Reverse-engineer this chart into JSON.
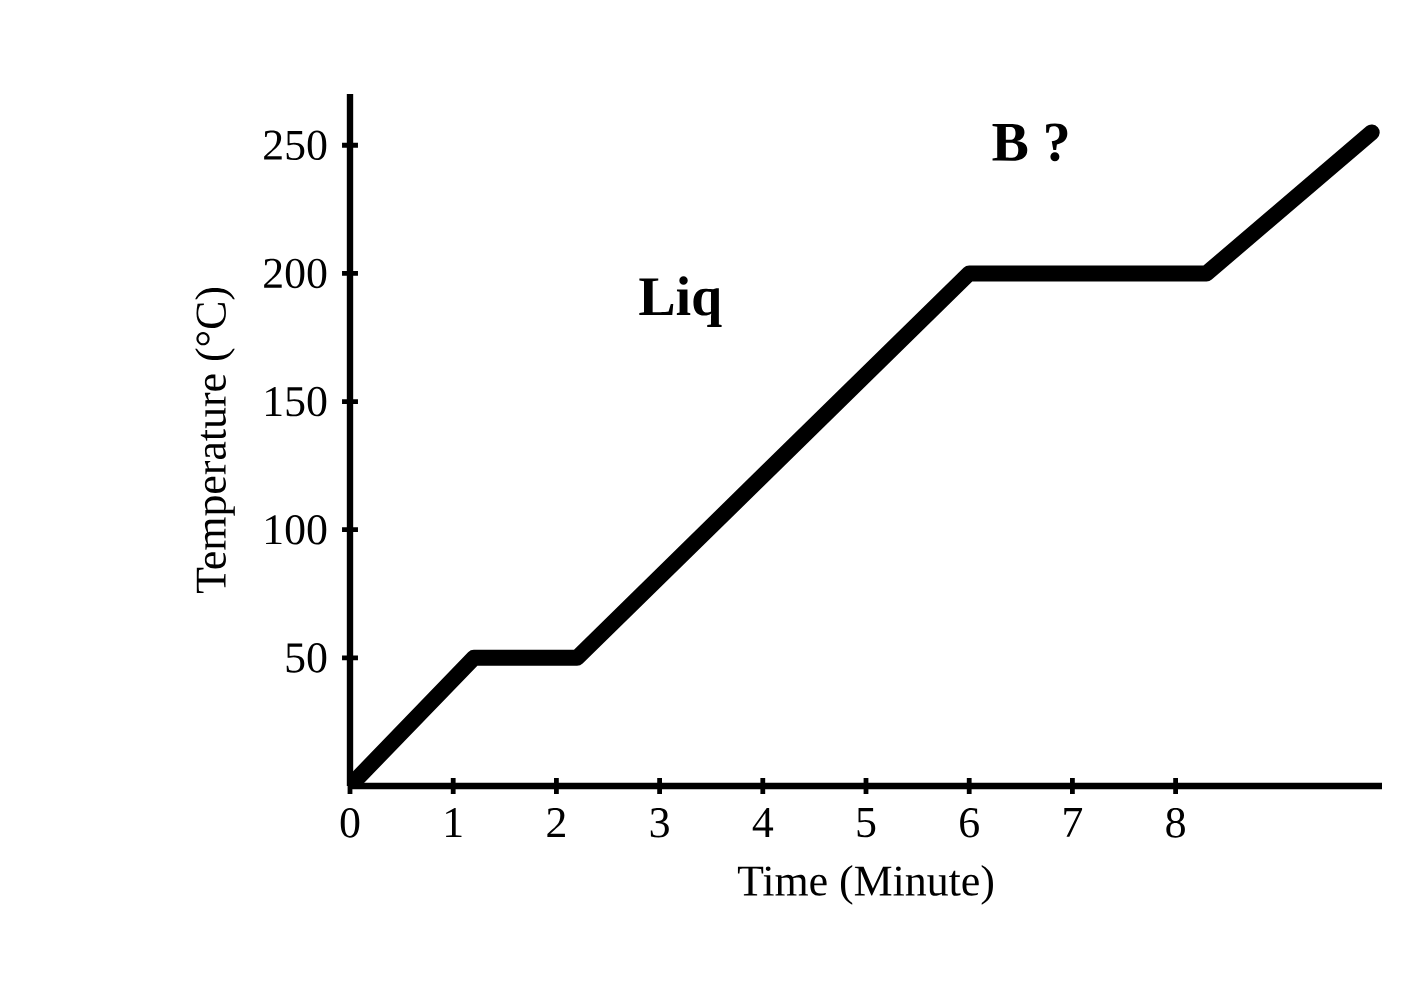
{
  "chart_data": {
    "type": "line",
    "xlabel": "Time (Minute)",
    "ylabel": "Temperature (°C)",
    "annotations": [
      "Liq",
      "B ?"
    ],
    "x": [
      0,
      1.2,
      2.2,
      6,
      8.3,
      9.9
    ],
    "series": [
      {
        "color": "#000000",
        "values": [
          0,
          50,
          50,
          200,
          200,
          255
        ]
      }
    ],
    "xlim": [
      0,
      10
    ],
    "ylim": [
      0,
      270
    ],
    "xticks": [
      0,
      1,
      2,
      3,
      4,
      5,
      6,
      7,
      8
    ],
    "yticks": [
      50,
      100,
      150,
      200,
      250
    ],
    "grid": false,
    "marker": "none",
    "line_style": "solid"
  }
}
